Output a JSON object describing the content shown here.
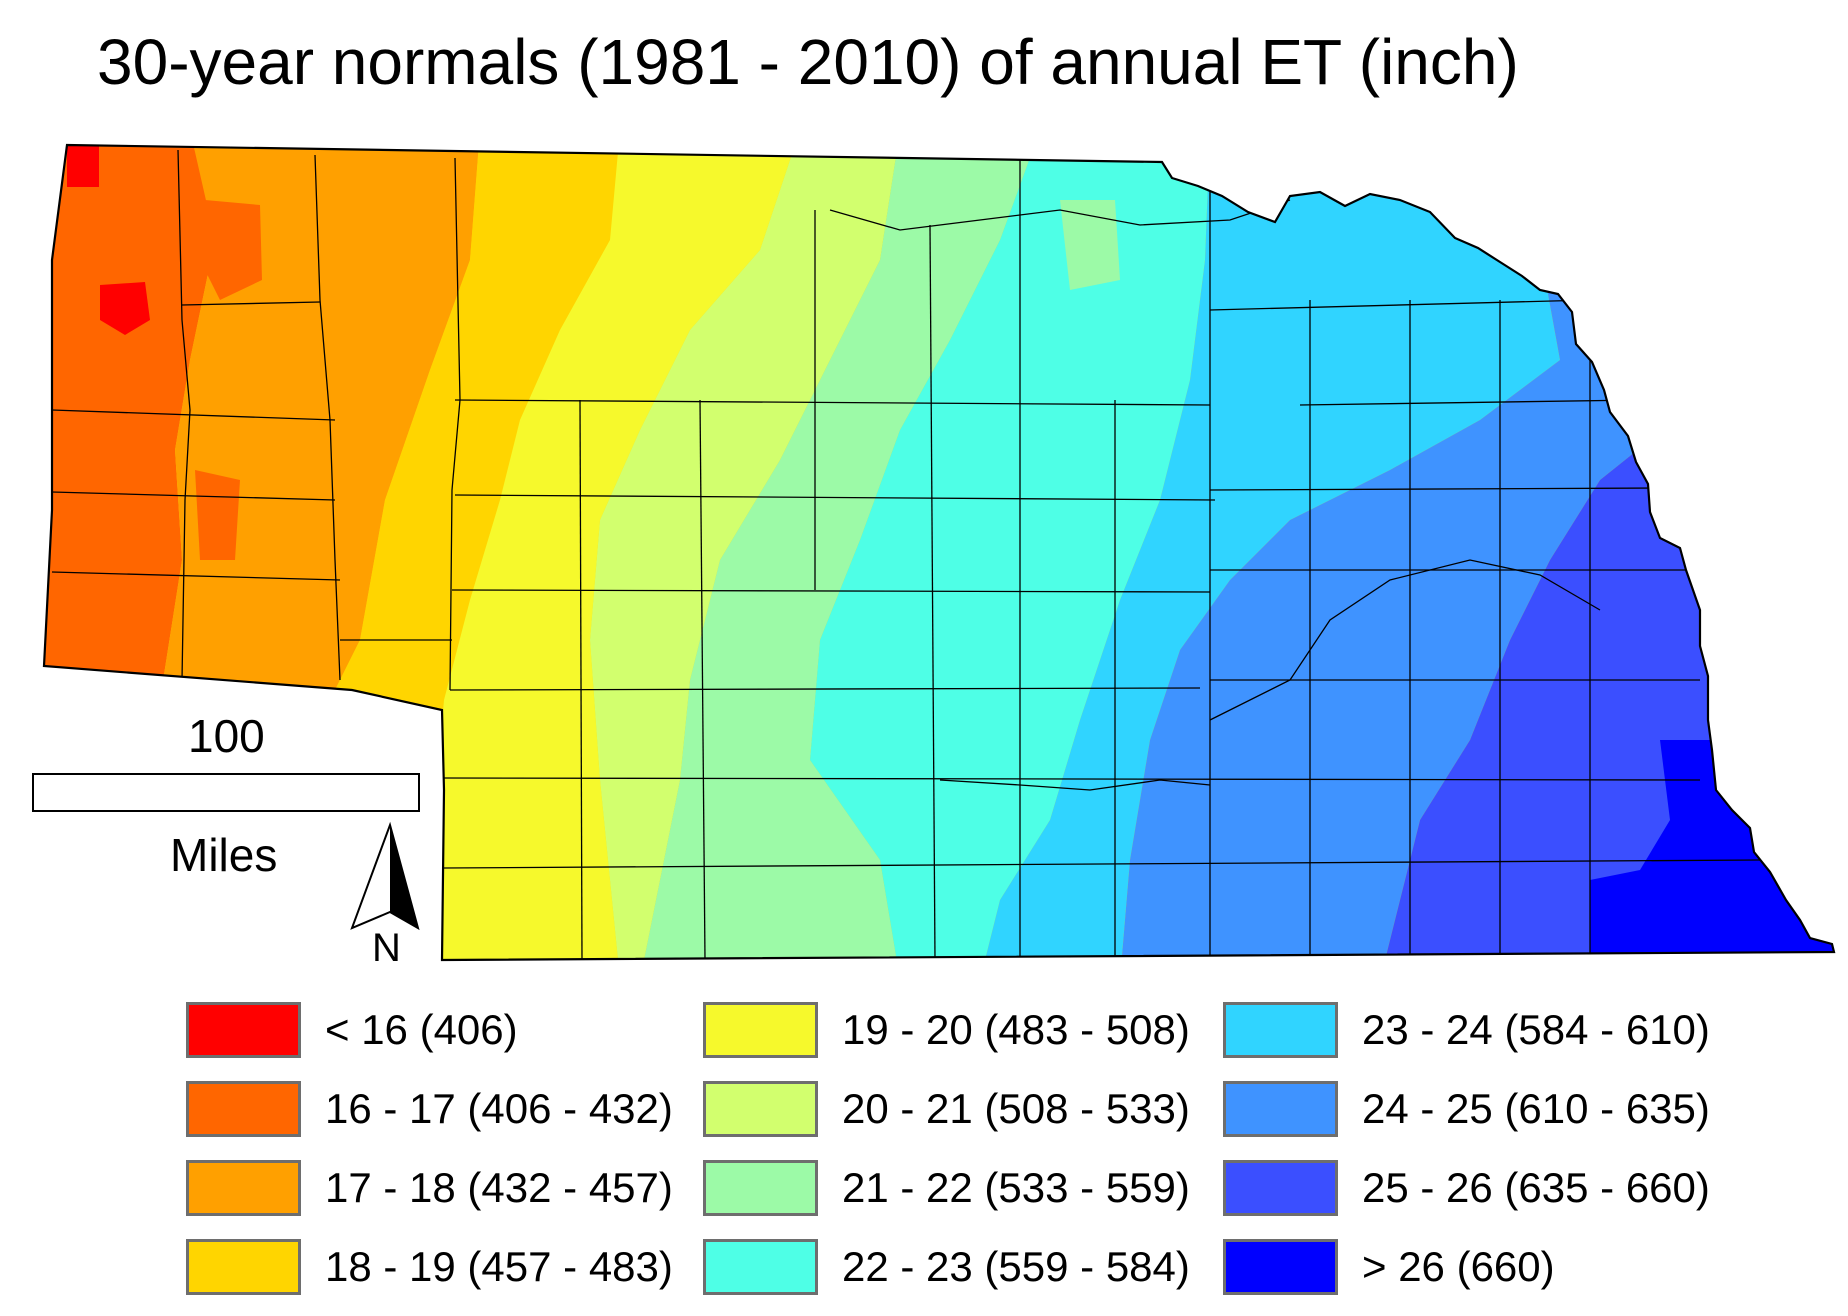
{
  "title": "30-year normals (1981 - 2010) of annual ET (inch)",
  "scale": {
    "value": "100",
    "unit": "Miles"
  },
  "north_arrow": {
    "label": "N",
    "icon": "north-arrow-icon"
  },
  "legend": [
    {
      "label": "< 16 (406)",
      "color": "#ff0000"
    },
    {
      "label": "16 - 17 (406 - 432)",
      "color": "#ff6600"
    },
    {
      "label": "17 - 18 (432 - 457)",
      "color": "#ffa000"
    },
    {
      "label": "18 - 19 (457 - 483)",
      "color": "#ffd500"
    },
    {
      "label": "19 - 20 (483 - 508)",
      "color": "#f6f92c"
    },
    {
      "label": "20 - 21 (508 - 533)",
      "color": "#d2ff6e"
    },
    {
      "label": "21 - 22 (533 - 559)",
      "color": "#9cfaa7"
    },
    {
      "label": "22 - 23 (559 - 584)",
      "color": "#4effe6"
    },
    {
      "label": "23 - 24 (584 - 610)",
      "color": "#30d4ff"
    },
    {
      "label": "24 - 25 (610 - 635)",
      "color": "#3f93ff"
    },
    {
      "label": "25 - 26 (635 - 660)",
      "color": "#3b4fff"
    },
    {
      "label": "> 26 (660)",
      "color": "#0000ff"
    }
  ]
}
